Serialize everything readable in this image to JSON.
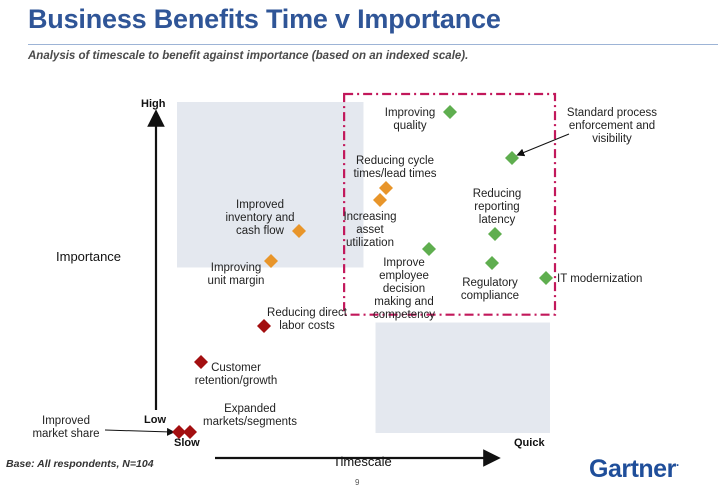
{
  "page": {
    "title": "Business Benefits Time v Importance",
    "subtitle": "Analysis of timescale to benefit against importance (based on an indexed scale).",
    "footnote": "Base: All respondents, N=104",
    "page_number": "9",
    "logo": "Gartner"
  },
  "colors": {
    "title": "#2f5597",
    "red": "#a30f10",
    "orange": "#e8952a",
    "green": "#5fae4f",
    "shade": "#e4e8ef",
    "highlight_box": "#c2185b"
  },
  "chart_data": {
    "type": "scatter",
    "title": "Business Benefits Time v Importance",
    "xlabel": "Timescale",
    "ylabel": "Importance",
    "x_ticks": [
      "Slow",
      "Quick"
    ],
    "y_ticks": [
      "Low",
      "High"
    ],
    "xlim": [
      0,
      100
    ],
    "ylim": [
      0,
      100
    ],
    "grid": false,
    "quadrants": {
      "shaded": [
        "top-left",
        "bottom-right"
      ],
      "split_x": 50,
      "split_y": 50
    },
    "highlight_region": {
      "x": [
        44,
        100
      ],
      "y": [
        43,
        100
      ],
      "style": "dash-dot"
    },
    "points": [
      {
        "label": "Improved market share",
        "x": 0,
        "y": 4,
        "color": "red"
      },
      {
        "label": "Expanded markets/segments",
        "x": 3,
        "y": 4,
        "color": "red"
      },
      {
        "label": "Customer retention/growth",
        "x": 6,
        "y": 20,
        "color": "red"
      },
      {
        "label": "Reducing direct labor costs",
        "x": 23,
        "y": 35,
        "color": "red"
      },
      {
        "label": "Improving unit margin",
        "x": 25,
        "y": 52,
        "color": "orange"
      },
      {
        "label": "Improved inventory and cash flow",
        "x": 32,
        "y": 63,
        "color": "orange"
      },
      {
        "label": "Reducing cycle times/lead times",
        "x": 57,
        "y": 76,
        "color": "orange"
      },
      {
        "label": "Increasing asset utilization",
        "x": 55,
        "y": 72,
        "color": "orange"
      },
      {
        "label": "Improving quality",
        "x": 74,
        "y": 95,
        "color": "green"
      },
      {
        "label": "Standard process enforcement and visibility",
        "x": 91,
        "y": 82,
        "color": "green"
      },
      {
        "label": "Reducing reporting latency",
        "x": 86,
        "y": 62,
        "color": "green"
      },
      {
        "label": "Improve employee decision making and competency",
        "x": 68,
        "y": 56,
        "color": "green"
      },
      {
        "label": "Regulatory compliance",
        "x": 85,
        "y": 51,
        "color": "green"
      },
      {
        "label": "IT modernization",
        "x": 100,
        "y": 47,
        "color": "green"
      }
    ]
  }
}
